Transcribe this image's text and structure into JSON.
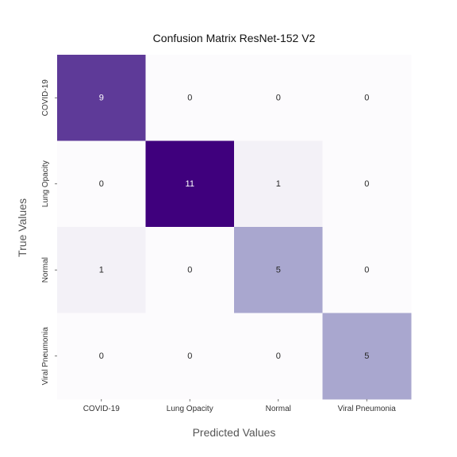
{
  "chart_data": {
    "type": "heatmap",
    "title": "Confusion Matrix ResNet-152 V2",
    "xlabel": "Predicted Values",
    "ylabel": "True Values",
    "x_categories": [
      "COVID-19",
      "Lung Opacity",
      "Normal",
      "Viral Pneumonia"
    ],
    "y_categories": [
      "COVID-19",
      "Lung Opacity",
      "Normal",
      "Viral Pneumonia"
    ],
    "values": [
      [
        9,
        0,
        0,
        0
      ],
      [
        0,
        11,
        1,
        0
      ],
      [
        1,
        0,
        5,
        0
      ],
      [
        0,
        0,
        0,
        5
      ]
    ],
    "value_range": [
      0,
      11
    ],
    "colormap": "Purples",
    "colorbar": false,
    "grid": false
  }
}
